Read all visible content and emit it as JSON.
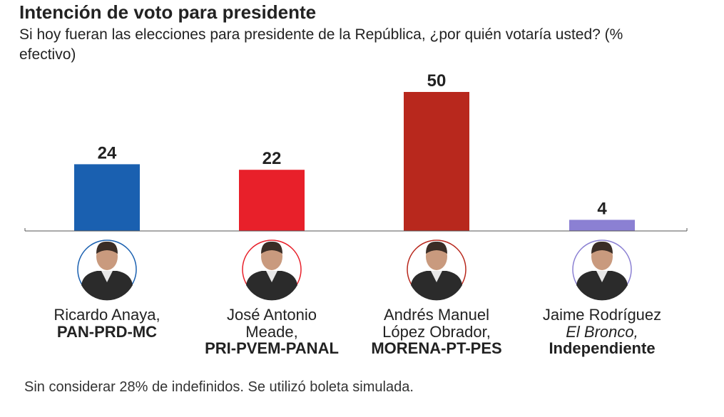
{
  "chart_data": {
    "type": "bar",
    "title": "Intención de voto para presidente",
    "subtitle": "Si hoy fueran las elecciones para presidente de la República, ¿por quién votaría usted? (% efectivo)",
    "categories": [
      "Ricardo Anaya,",
      "José Antonio Meade,",
      "Andrés Manuel López Obrador,",
      "Jaime Rodríguez"
    ],
    "aliases": [
      null,
      null,
      null,
      "El Bronco,"
    ],
    "parties": [
      "PAN-PRD-MC",
      "PRI-PVEM-PANAL",
      "MORENA-PT-PES",
      "Independiente"
    ],
    "values": [
      24,
      22,
      50,
      4
    ],
    "colors": [
      "#1a60b0",
      "#e8202a",
      "#b8281d",
      "#8b80d3"
    ],
    "note": "Sin considerar 28% de indefinidos. Se utilizó boleta simulada."
  }
}
